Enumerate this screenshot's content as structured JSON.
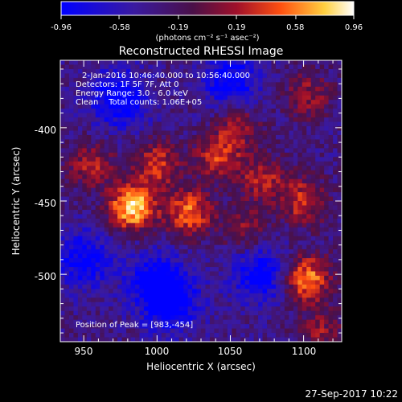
{
  "colorbar": {
    "tick_labels": [
      "-0.96",
      "-0.58",
      "-0.19",
      "0.19",
      "0.58",
      "0.96"
    ],
    "range": [
      -0.96,
      0.96
    ],
    "unit_label": "(photons cm⁻² s⁻¹ asec⁻²)"
  },
  "plot": {
    "title": "Reconstructed RHESSI Image",
    "xlabel": "Heliocentric X (arcsec)",
    "ylabel": "Heliocentric Y (arcsec)",
    "annotations": [
      "2-Jan-2016 10:46:40.000 to 10:56:40.000",
      "Detectors: 1F 5F 7F, Att 0",
      "Energy Range: 3.0 - 6.0 keV",
      "Clean    Total counts: 1.06E+05"
    ],
    "peak_label": "Position of Peak = [983,-454]",
    "timestamp": "27-Sep-2017 10:22"
  },
  "chart_data": {
    "type": "heatmap",
    "title": "Reconstructed RHESSI Image",
    "xlabel": "Heliocentric X (arcsec)",
    "ylabel": "Heliocentric Y (arcsec)",
    "xlim": [
      934,
      1126
    ],
    "ylim": [
      -546,
      -354
    ],
    "x_ticks": [
      950,
      1000,
      1050,
      1100
    ],
    "y_ticks": [
      -400,
      -450,
      -500
    ],
    "value_range": [
      -0.96,
      0.96
    ],
    "colormap": "blue-purple-red-yellow-white",
    "colors": [
      "#0000ff",
      "#5a1a8c",
      "#c0203a",
      "#ff7a10",
      "#ffee60",
      "#ffffff"
    ],
    "peak_position": [
      983,
      -454
    ],
    "sources": [
      {
        "x": 983,
        "y": -454,
        "amplitude": 1.0
      },
      {
        "x": 1022,
        "y": -458,
        "amplitude": 0.7
      },
      {
        "x": 1102,
        "y": -503,
        "amplitude": 0.8
      },
      {
        "x": 1000,
        "y": -425,
        "amplitude": 0.55
      },
      {
        "x": 1042,
        "y": -420,
        "amplitude": 0.55
      },
      {
        "x": 1072,
        "y": -435,
        "amplitude": 0.45
      },
      {
        "x": 1100,
        "y": -450,
        "amplitude": 0.55
      },
      {
        "x": 955,
        "y": -425,
        "amplitude": 0.45
      },
      {
        "x": 1055,
        "y": -398,
        "amplitude": 0.4
      },
      {
        "x": 1103,
        "y": -378,
        "amplitude": 0.4
      },
      {
        "x": 1060,
        "y": -470,
        "amplitude": 0.35
      },
      {
        "x": 1112,
        "y": -540,
        "amplitude": 0.35
      }
    ],
    "negatives": [
      {
        "x": 975,
        "y": -380,
        "amplitude": 0.6
      },
      {
        "x": 1050,
        "y": -368,
        "amplitude": 0.55
      },
      {
        "x": 1070,
        "y": -500,
        "amplitude": 0.55
      },
      {
        "x": 1000,
        "y": -505,
        "amplitude": 0.55
      },
      {
        "x": 950,
        "y": -490,
        "amplitude": 0.5
      },
      {
        "x": 1010,
        "y": -520,
        "amplitude": 0.5
      }
    ]
  }
}
